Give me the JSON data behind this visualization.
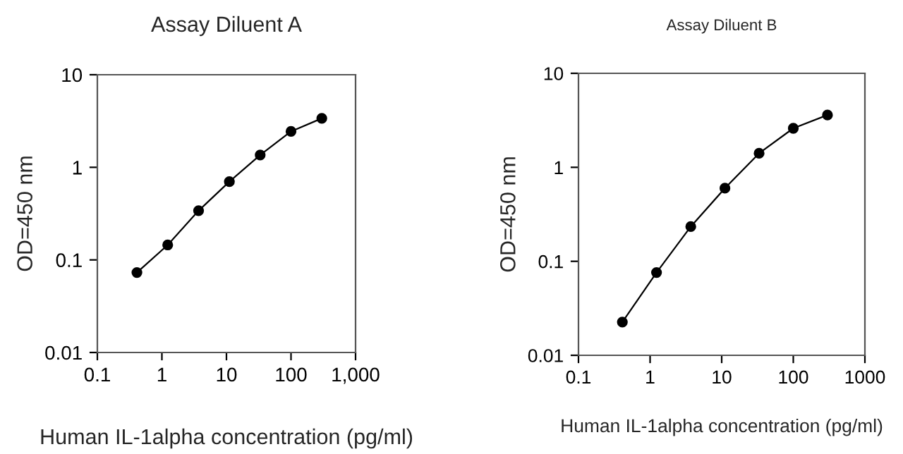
{
  "chart_data": [
    {
      "type": "line",
      "title": "Assay Diluent A",
      "xlabel": "Human IL-1alpha concentration (pg/ml)",
      "ylabel": "OD=450 nm",
      "log": "xy",
      "marker": "circle",
      "line_style": "solid",
      "grid": false,
      "legend": false,
      "x": [
        0.41,
        1.23,
        3.7,
        11.1,
        33.3,
        100,
        300
      ],
      "series": [
        {
          "color": "#000000",
          "values": [
            0.073,
            0.145,
            0.34,
            0.7,
            1.36,
            2.44,
            3.38
          ]
        }
      ],
      "xlim": [
        0.1,
        1000
      ],
      "xticks": [
        0.1,
        1,
        10,
        100,
        {
          "value": 1000,
          "label": "1,000"
        }
      ],
      "ylim": [
        0.01,
        10
      ],
      "yticks": [
        0.01,
        0.1,
        1,
        10
      ]
    },
    {
      "type": "line",
      "title": "Assay Diluent B",
      "xlabel": "Human IL-1alpha concentration (pg/ml)",
      "ylabel": "OD=450 nm",
      "log": "xy",
      "marker": "circle",
      "line_style": "solid",
      "grid": false,
      "legend": false,
      "x": [
        0.41,
        1.23,
        3.7,
        11.1,
        33.3,
        100,
        300
      ],
      "series": [
        {
          "color": "#000000",
          "values": [
            0.0226,
            0.076,
            0.234,
            0.6,
            1.41,
            2.6,
            3.6
          ]
        }
      ],
      "xlim": [
        0.1,
        1000
      ],
      "xticks": [
        0.1,
        1,
        10,
        100,
        1000
      ],
      "ylim": [
        0.01,
        10
      ],
      "yticks": [
        0.01,
        0.1,
        1,
        10
      ]
    }
  ]
}
